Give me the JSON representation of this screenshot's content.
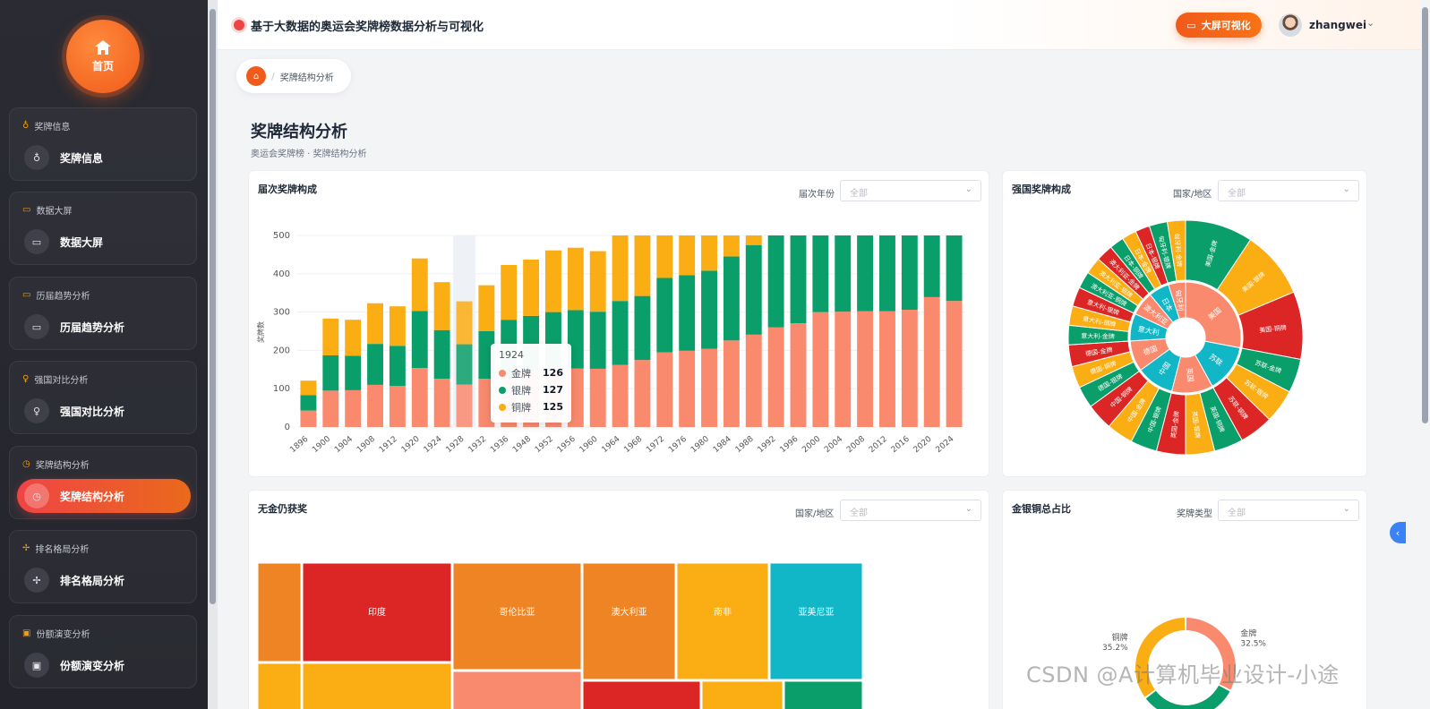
{
  "sidebar": {
    "home_label": "首页",
    "sections": [
      {
        "header": "奖牌信息",
        "item": "奖牌信息",
        "icon": "medal-icon",
        "glyph": "♁",
        "active": false
      },
      {
        "header": "数据大屏",
        "item": "数据大屏",
        "icon": "screen-icon",
        "glyph": "▭",
        "active": false
      },
      {
        "header": "历届趋势分析",
        "item": "历届趋势分析",
        "icon": "trend-icon",
        "glyph": "▭",
        "active": false
      },
      {
        "header": "强国对比分析",
        "item": "强国对比分析",
        "icon": "trophy-icon",
        "glyph": "♀",
        "active": false
      },
      {
        "header": "奖牌结构分析",
        "item": "奖牌结构分析",
        "icon": "pie-icon",
        "glyph": "◷",
        "active": true
      },
      {
        "header": "排名格局分析",
        "item": "排名格局分析",
        "icon": "crosshair-icon",
        "glyph": "✢",
        "active": false
      },
      {
        "header": "份额演变分析",
        "item": "份额演变分析",
        "icon": "share-icon",
        "glyph": "▣",
        "active": false
      }
    ]
  },
  "header": {
    "title": "基于大数据的奥运会奖牌榜数据分析与可视化",
    "bigscreen_label": "大屏可视化",
    "username": "zhangwei"
  },
  "breadcrumb": {
    "current": "奖牌结构分析"
  },
  "page": {
    "title": "奖牌结构分析",
    "subtitle": "奥运会奖牌榜 · 奖牌结构分析"
  },
  "panels": {
    "p1": {
      "title": "届次奖牌构成",
      "filter_label": "届次年份",
      "filter_value": "全部"
    },
    "p2": {
      "title": "强国奖牌构成",
      "filter_label": "国家/地区",
      "filter_value": "全部"
    },
    "p3": {
      "title": "无金仍获奖",
      "filter_label": "国家/地区",
      "filter_value": "全部"
    },
    "p4": {
      "title": "金银铜总占比",
      "filter_label": "奖牌类型",
      "filter_value": "全部"
    }
  },
  "colors": {
    "gold": "#fa8a6e",
    "silver": "#0a9f6a",
    "bronze": "#fbad14"
  },
  "tooltip": {
    "year": "1924",
    "rows": [
      {
        "name": "金牌",
        "value": "126",
        "color": "#fa8a6e"
      },
      {
        "name": "银牌",
        "value": "127",
        "color": "#0a9f6a"
      },
      {
        "name": "铜牌",
        "value": "125",
        "color": "#fbad14"
      }
    ]
  },
  "chart_data": [
    {
      "type": "bar",
      "title": "届次奖牌构成",
      "ylabel": "奖牌数",
      "ylim": [
        0,
        500
      ],
      "yticks": [
        0,
        100,
        200,
        300,
        400,
        500
      ],
      "categories": [
        "1896",
        "1900",
        "1904",
        "1908",
        "1912",
        "1920",
        "1924",
        "1928",
        "1932",
        "1936",
        "1948",
        "1952",
        "1956",
        "1960",
        "1964",
        "1968",
        "1972",
        "1976",
        "1980",
        "1984",
        "1988",
        "1992",
        "1996",
        "2000",
        "2004",
        "2008",
        "2012",
        "2016",
        "2020",
        "2024"
      ],
      "series": [
        {
          "name": "金牌",
          "values": [
            43,
            95,
            96,
            110,
            107,
            154,
            126,
            111,
            126,
            126,
            147,
            157,
            153,
            152,
            162,
            175,
            195,
            199,
            204,
            226,
            241,
            260,
            271,
            300,
            301,
            302,
            302,
            306,
            339,
            329
          ]
        },
        {
          "name": "银牌",
          "values": [
            40,
            92,
            90,
            107,
            105,
            149,
            127,
            105,
            124,
            154,
            143,
            143,
            152,
            149,
            167,
            167,
            194,
            197,
            204,
            219,
            234,
            240,
            229,
            200,
            199,
            198,
            198,
            194,
            161,
            171
          ]
        },
        {
          "name": "铜牌",
          "values": [
            38,
            96,
            94,
            106,
            103,
            137,
            125,
            112,
            120,
            143,
            147,
            161,
            163,
            158,
            180,
            182,
            222,
            247,
            227,
            246,
            264,
            288,
            298,
            327,
            327,
            352,
            356,
            360,
            402,
            380
          ]
        }
      ],
      "highlight": "1928"
    },
    {
      "type": "sunburst",
      "title": "强国奖牌构成",
      "inner": [
        "美国",
        "苏联",
        "英国",
        "中国",
        "德国",
        "意大利",
        "澳大利亚",
        "日本",
        "匈牙利"
      ],
      "outer": [
        "美国-金牌",
        "美国-银牌",
        "美国-铜牌",
        "苏联-金牌",
        "苏联-银牌",
        "苏联-铜牌",
        "英国-铜牌",
        "英国-银牌",
        "英国-金牌",
        "中国-银牌",
        "中国-金牌",
        "中国-铜牌",
        "德国-银牌",
        "德国-铜牌",
        "德国-金牌",
        "意大利-金牌",
        "意大利-铜牌",
        "意大利-银牌",
        "澳大利亚-铜牌",
        "澳大利亚-银牌",
        "澳大利亚-金牌",
        "日本-铜牌",
        "日本-金牌",
        "日本-银牌",
        "匈牙利-银牌",
        "匈牙利-金牌"
      ]
    },
    {
      "type": "treemap",
      "title": "无金仍获奖",
      "labels": [
        "印度",
        "哥伦比亚",
        "澳大利亚",
        "南非",
        "亚美尼亚"
      ]
    },
    {
      "type": "pie",
      "title": "金银铜总占比",
      "labels": [
        "金牌",
        "银牌",
        "铜牌"
      ],
      "values": [
        32.5,
        32.3,
        35.2
      ],
      "value_labels": [
        "32.5%",
        "",
        "35.2%"
      ]
    }
  ],
  "watermark": "CSDN @A计算机毕业设计-小途"
}
